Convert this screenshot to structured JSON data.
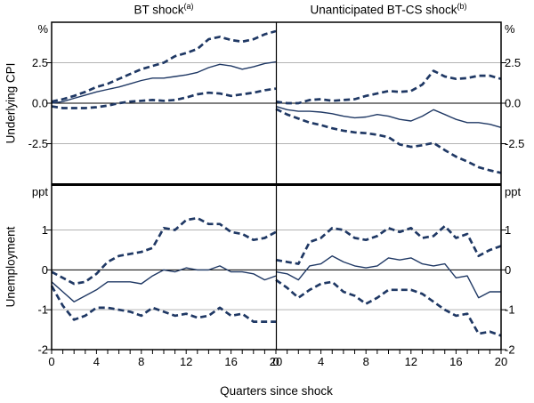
{
  "colors": {
    "line": "#1f3864",
    "grid": "#b3b3b3",
    "axis": "#000000",
    "text": "#000000",
    "background": "#ffffff"
  },
  "labels": {
    "x_axis_title": "Quarters since shock",
    "row_labels": [
      "Underlying CPI",
      "Unemployment"
    ]
  },
  "chart_data": [
    {
      "id": "cpi-bt-shock",
      "type": "line",
      "title": "BT shock",
      "title_sup": "(a)",
      "unit": "%",
      "row": 0,
      "col": 0,
      "x_min": 0,
      "x_max": 20,
      "ylim": [
        -5,
        5
      ],
      "gridlines": [
        2.5,
        -2.5
      ],
      "zero_line": true,
      "y_ticks": [
        {
          "value": 2.5,
          "label": "2.5"
        },
        {
          "value": 0,
          "label": "0.0"
        },
        {
          "value": -2.5,
          "label": "-2.5"
        }
      ],
      "series": [
        {
          "name": "upper-confidence-band",
          "style": "dashed",
          "values": [
            0.1,
            0.25,
            0.45,
            0.7,
            1.0,
            1.2,
            1.5,
            1.8,
            2.1,
            2.3,
            2.5,
            2.9,
            3.1,
            3.35,
            3.95,
            4.1,
            3.9,
            3.8,
            3.95,
            4.25,
            4.45
          ]
        },
        {
          "name": "central-estimate",
          "style": "solid",
          "values": [
            0.0,
            0.1,
            0.3,
            0.5,
            0.7,
            0.85,
            1.0,
            1.2,
            1.4,
            1.55,
            1.55,
            1.65,
            1.75,
            1.9,
            2.2,
            2.4,
            2.3,
            2.1,
            2.25,
            2.45,
            2.55
          ]
        },
        {
          "name": "lower-confidence-band",
          "style": "dashed",
          "values": [
            -0.2,
            -0.3,
            -0.3,
            -0.3,
            -0.25,
            -0.15,
            0.0,
            0.1,
            0.15,
            0.2,
            0.15,
            0.2,
            0.35,
            0.55,
            0.65,
            0.6,
            0.45,
            0.55,
            0.65,
            0.8,
            0.9
          ]
        }
      ]
    },
    {
      "id": "cpi-btcs-shock",
      "type": "line",
      "title": "Unanticipated BT-CS shock",
      "title_sup": "(b)",
      "unit": "%",
      "row": 0,
      "col": 1,
      "x_min": 0,
      "x_max": 20,
      "ylim": [
        -5,
        5
      ],
      "gridlines": [
        2.5,
        -2.5
      ],
      "zero_line": true,
      "y_ticks": [
        {
          "value": 2.5,
          "label": "2.5"
        },
        {
          "value": 0,
          "label": "0.0"
        },
        {
          "value": -2.5,
          "label": "-2.5"
        }
      ],
      "series": [
        {
          "name": "upper-confidence-band",
          "style": "dashed",
          "values": [
            0.1,
            0.0,
            0.0,
            0.2,
            0.25,
            0.15,
            0.2,
            0.25,
            0.45,
            0.6,
            0.75,
            0.7,
            0.75,
            1.15,
            2.0,
            1.65,
            1.5,
            1.55,
            1.7,
            1.7,
            1.5
          ]
        },
        {
          "name": "central-estimate",
          "style": "solid",
          "values": [
            -0.2,
            -0.4,
            -0.5,
            -0.5,
            -0.55,
            -0.65,
            -0.8,
            -0.9,
            -0.85,
            -0.7,
            -0.8,
            -1.0,
            -1.1,
            -0.8,
            -0.4,
            -0.7,
            -1.0,
            -1.2,
            -1.2,
            -1.3,
            -1.5
          ]
        },
        {
          "name": "lower-confidence-band",
          "style": "dashed",
          "values": [
            -0.35,
            -0.7,
            -0.95,
            -1.2,
            -1.35,
            -1.55,
            -1.7,
            -1.8,
            -1.85,
            -1.95,
            -2.1,
            -2.55,
            -2.7,
            -2.6,
            -2.45,
            -2.9,
            -3.3,
            -3.6,
            -3.95,
            -4.15,
            -4.3
          ]
        }
      ]
    },
    {
      "id": "unemployment-bt-shock",
      "type": "line",
      "title": "",
      "unit": "ppt",
      "row": 1,
      "col": 0,
      "x_min": 0,
      "x_max": 20,
      "ylim": [
        -2,
        2.15
      ],
      "gridlines": [
        1,
        -1
      ],
      "zero_line": true,
      "y_ticks": [
        {
          "value": 1,
          "label": "1"
        },
        {
          "value": 0,
          "label": "0"
        },
        {
          "value": -1,
          "label": "-1"
        },
        {
          "value": -2,
          "label": "-2"
        }
      ],
      "x_tick_labels": [
        "0",
        "4",
        "8",
        "12",
        "16",
        "20"
      ],
      "series": [
        {
          "name": "upper-confidence-band",
          "style": "dashed",
          "values": [
            -0.05,
            -0.2,
            -0.35,
            -0.3,
            -0.1,
            0.2,
            0.35,
            0.4,
            0.45,
            0.55,
            1.05,
            1.0,
            1.25,
            1.3,
            1.15,
            1.15,
            0.95,
            0.9,
            0.75,
            0.8,
            0.95
          ]
        },
        {
          "name": "central-estimate",
          "style": "solid",
          "values": [
            -0.3,
            -0.55,
            -0.8,
            -0.65,
            -0.5,
            -0.3,
            -0.3,
            -0.3,
            -0.35,
            -0.15,
            0.0,
            -0.05,
            0.05,
            0.0,
            0.0,
            0.1,
            -0.05,
            -0.05,
            -0.1,
            -0.25,
            -0.15
          ]
        },
        {
          "name": "lower-confidence-band",
          "style": "dashed",
          "values": [
            -0.4,
            -0.9,
            -1.25,
            -1.15,
            -0.95,
            -0.95,
            -1.0,
            -1.05,
            -1.15,
            -0.95,
            -1.05,
            -1.15,
            -1.1,
            -1.2,
            -1.15,
            -0.95,
            -1.15,
            -1.1,
            -1.3,
            -1.3,
            -1.3
          ]
        }
      ]
    },
    {
      "id": "unemployment-btcs-shock",
      "type": "line",
      "title": "",
      "unit": "ppt",
      "row": 1,
      "col": 1,
      "x_min": 0,
      "x_max": 20,
      "ylim": [
        -2,
        2.15
      ],
      "gridlines": [
        1,
        -1
      ],
      "zero_line": true,
      "y_ticks": [
        {
          "value": 1,
          "label": "1"
        },
        {
          "value": 0,
          "label": "0"
        },
        {
          "value": -1,
          "label": "-1"
        },
        {
          "value": -2,
          "label": "-2"
        }
      ],
      "x_tick_labels": [
        "0",
        "4",
        "8",
        "12",
        "16",
        "20"
      ],
      "series": [
        {
          "name": "upper-confidence-band",
          "style": "dashed",
          "values": [
            0.25,
            0.2,
            0.15,
            0.7,
            0.8,
            1.05,
            1.0,
            0.8,
            0.75,
            0.85,
            1.05,
            0.95,
            1.05,
            0.8,
            0.85,
            1.1,
            0.8,
            0.9,
            0.35,
            0.5,
            0.6
          ]
        },
        {
          "name": "central-estimate",
          "style": "solid",
          "values": [
            -0.05,
            -0.1,
            -0.25,
            0.1,
            0.15,
            0.35,
            0.2,
            0.1,
            0.05,
            0.1,
            0.3,
            0.25,
            0.3,
            0.15,
            0.1,
            0.15,
            -0.2,
            -0.15,
            -0.7,
            -0.55,
            -0.55
          ]
        },
        {
          "name": "lower-confidence-band",
          "style": "dashed",
          "values": [
            -0.25,
            -0.45,
            -0.7,
            -0.5,
            -0.35,
            -0.3,
            -0.55,
            -0.65,
            -0.85,
            -0.7,
            -0.5,
            -0.5,
            -0.5,
            -0.6,
            -0.8,
            -1.0,
            -1.15,
            -1.1,
            -1.6,
            -1.55,
            -1.65
          ]
        }
      ]
    }
  ]
}
